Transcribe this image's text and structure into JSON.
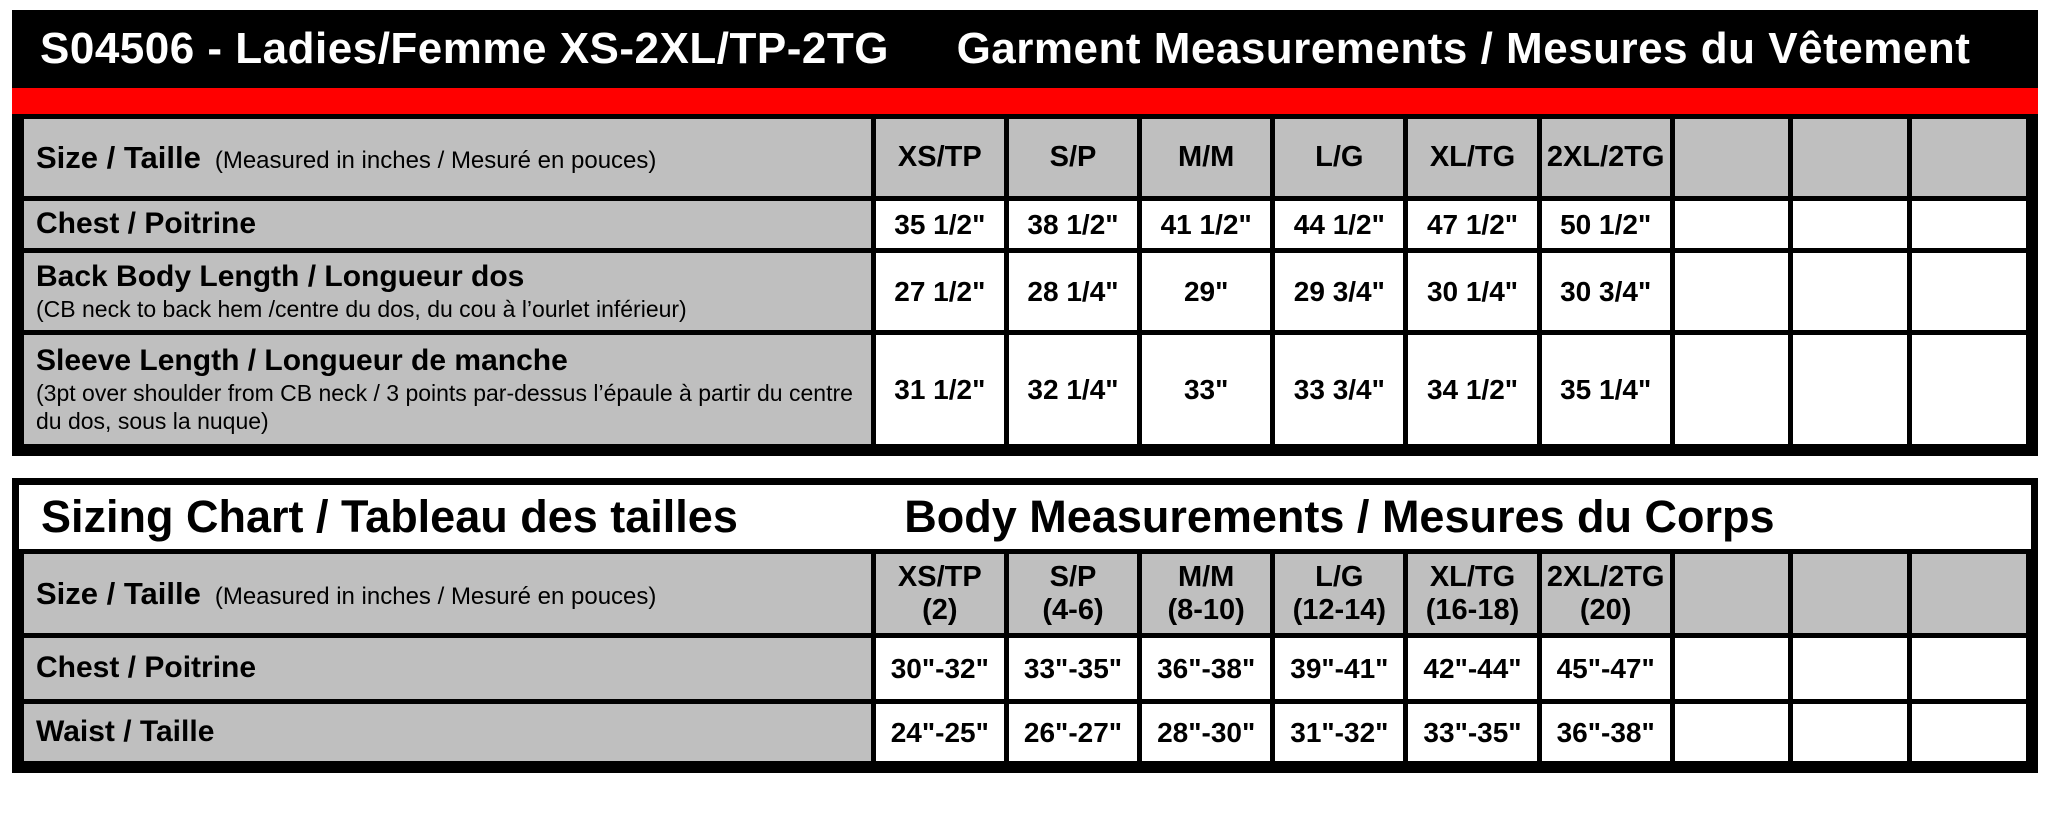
{
  "colors": {
    "accent_red": "#FF0000",
    "header_black": "#000000",
    "cell_gray": "#BFBFBF"
  },
  "garment_table": {
    "title_left": "S04506 - Ladies/Femme XS-2XL/TP-2TG",
    "title_right": "Garment Measurements / Mesures du Vêtement",
    "size_header": {
      "label": "Size / Taille",
      "note": "(Measured in inches / Mesuré en pouces)"
    },
    "columns": [
      "XS/TP",
      "S/P",
      "M/M",
      "L/G",
      "XL/TG",
      "2XL/2TG"
    ],
    "rows": [
      {
        "label": "Chest / Poitrine",
        "note": "",
        "values": [
          "35 1/2\"",
          "38 1/2\"",
          "41 1/2\"",
          "44 1/2\"",
          "47 1/2\"",
          "50 1/2\""
        ]
      },
      {
        "label": "Back Body Length / Longueur dos",
        "note": "(CB neck to back hem /centre du dos, du cou à l’ourlet inférieur)",
        "values": [
          "27 1/2\"",
          "28 1/4\"",
          "29\"",
          "29 3/4\"",
          "30 1/4\"",
          "30 3/4\""
        ]
      },
      {
        "label": "Sleeve Length / Longueur de manche",
        "note": "(3pt over shoulder from CB neck / 3 points par-dessus l’épaule à partir du centre du dos, sous la nuque)",
        "values": [
          "31 1/2\"",
          "32 1/4\"",
          "33\"",
          "33 3/4\"",
          "34 1/2\"",
          "35 1/4\""
        ]
      }
    ]
  },
  "sizing_table": {
    "title_left": "Sizing Chart / Tableau des tailles",
    "title_right": "Body Measurements / Mesures du Corps",
    "size_header": {
      "label": "Size / Taille",
      "note": "(Measured in inches / Mesuré en pouces)"
    },
    "columns": [
      {
        "name": "XS/TP",
        "range": "(2)"
      },
      {
        "name": "S/P",
        "range": "(4-6)"
      },
      {
        "name": "M/M",
        "range": "(8-10)"
      },
      {
        "name": "L/G",
        "range": "(12-14)"
      },
      {
        "name": "XL/TG",
        "range": "(16-18)"
      },
      {
        "name": "2XL/2TG",
        "range": "(20)"
      }
    ],
    "rows": [
      {
        "label": "Chest / Poitrine",
        "values": [
          "30\"-32\"",
          "33\"-35\"",
          "36\"-38\"",
          "39\"-41\"",
          "42\"-44\"",
          "45\"-47\""
        ]
      },
      {
        "label": "Waist / Taille",
        "values": [
          "24\"-25\"",
          "26\"-27\"",
          "28\"-30\"",
          "31\"-32\"",
          "33\"-35\"",
          "36\"-38\""
        ]
      }
    ]
  }
}
